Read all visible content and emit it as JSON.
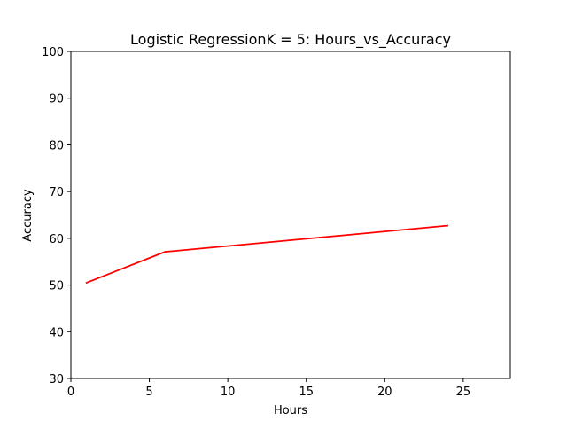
{
  "chart_data": {
    "type": "line",
    "title": "Logistic RegressionK = 5: Hours_vs_Accuracy",
    "xlabel": "Hours",
    "ylabel": "Accuracy",
    "xlim": [
      0,
      28
    ],
    "ylim": [
      30,
      100
    ],
    "xticks": [
      0,
      5,
      10,
      15,
      20,
      25
    ],
    "yticks": [
      30,
      40,
      50,
      60,
      70,
      80,
      90,
      100
    ],
    "grid": false,
    "series": [
      {
        "color": "#ff0000",
        "x": [
          1,
          6,
          24
        ],
        "y": [
          50.5,
          57.1,
          62.7
        ]
      }
    ]
  }
}
